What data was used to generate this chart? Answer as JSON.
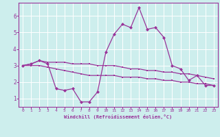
{
  "xlabel": "Windchill (Refroidissement éolien,°C)",
  "background_color": "#cdeeed",
  "line_color": "#993399",
  "x_values": [
    0,
    1,
    2,
    3,
    4,
    5,
    6,
    7,
    8,
    9,
    10,
    11,
    12,
    13,
    14,
    15,
    16,
    17,
    18,
    19,
    20,
    21,
    22,
    23
  ],
  "main_line": [
    3.0,
    3.1,
    3.3,
    3.1,
    1.6,
    1.5,
    1.6,
    0.8,
    0.8,
    1.4,
    3.8,
    4.9,
    5.5,
    5.3,
    6.5,
    5.2,
    5.3,
    4.7,
    3.0,
    2.8,
    2.1,
    2.4,
    1.8,
    1.8
  ],
  "upper_line": [
    3.0,
    3.1,
    3.3,
    3.2,
    3.2,
    3.2,
    3.1,
    3.1,
    3.1,
    3.0,
    3.0,
    3.0,
    2.9,
    2.8,
    2.8,
    2.7,
    2.7,
    2.6,
    2.6,
    2.5,
    2.5,
    2.4,
    2.3,
    2.2
  ],
  "lower_line": [
    3.0,
    3.0,
    3.0,
    2.9,
    2.8,
    2.7,
    2.6,
    2.5,
    2.4,
    2.4,
    2.4,
    2.4,
    2.3,
    2.3,
    2.3,
    2.2,
    2.2,
    2.1,
    2.1,
    2.0,
    2.0,
    1.9,
    1.9,
    1.8
  ],
  "ylim": [
    0.5,
    6.8
  ],
  "xlim": [
    -0.5,
    23.5
  ],
  "yticks": [
    1,
    2,
    3,
    4,
    5,
    6
  ],
  "xticks": [
    0,
    1,
    2,
    3,
    4,
    5,
    6,
    7,
    8,
    9,
    10,
    11,
    12,
    13,
    14,
    15,
    16,
    17,
    18,
    19,
    20,
    21,
    22,
    23
  ]
}
